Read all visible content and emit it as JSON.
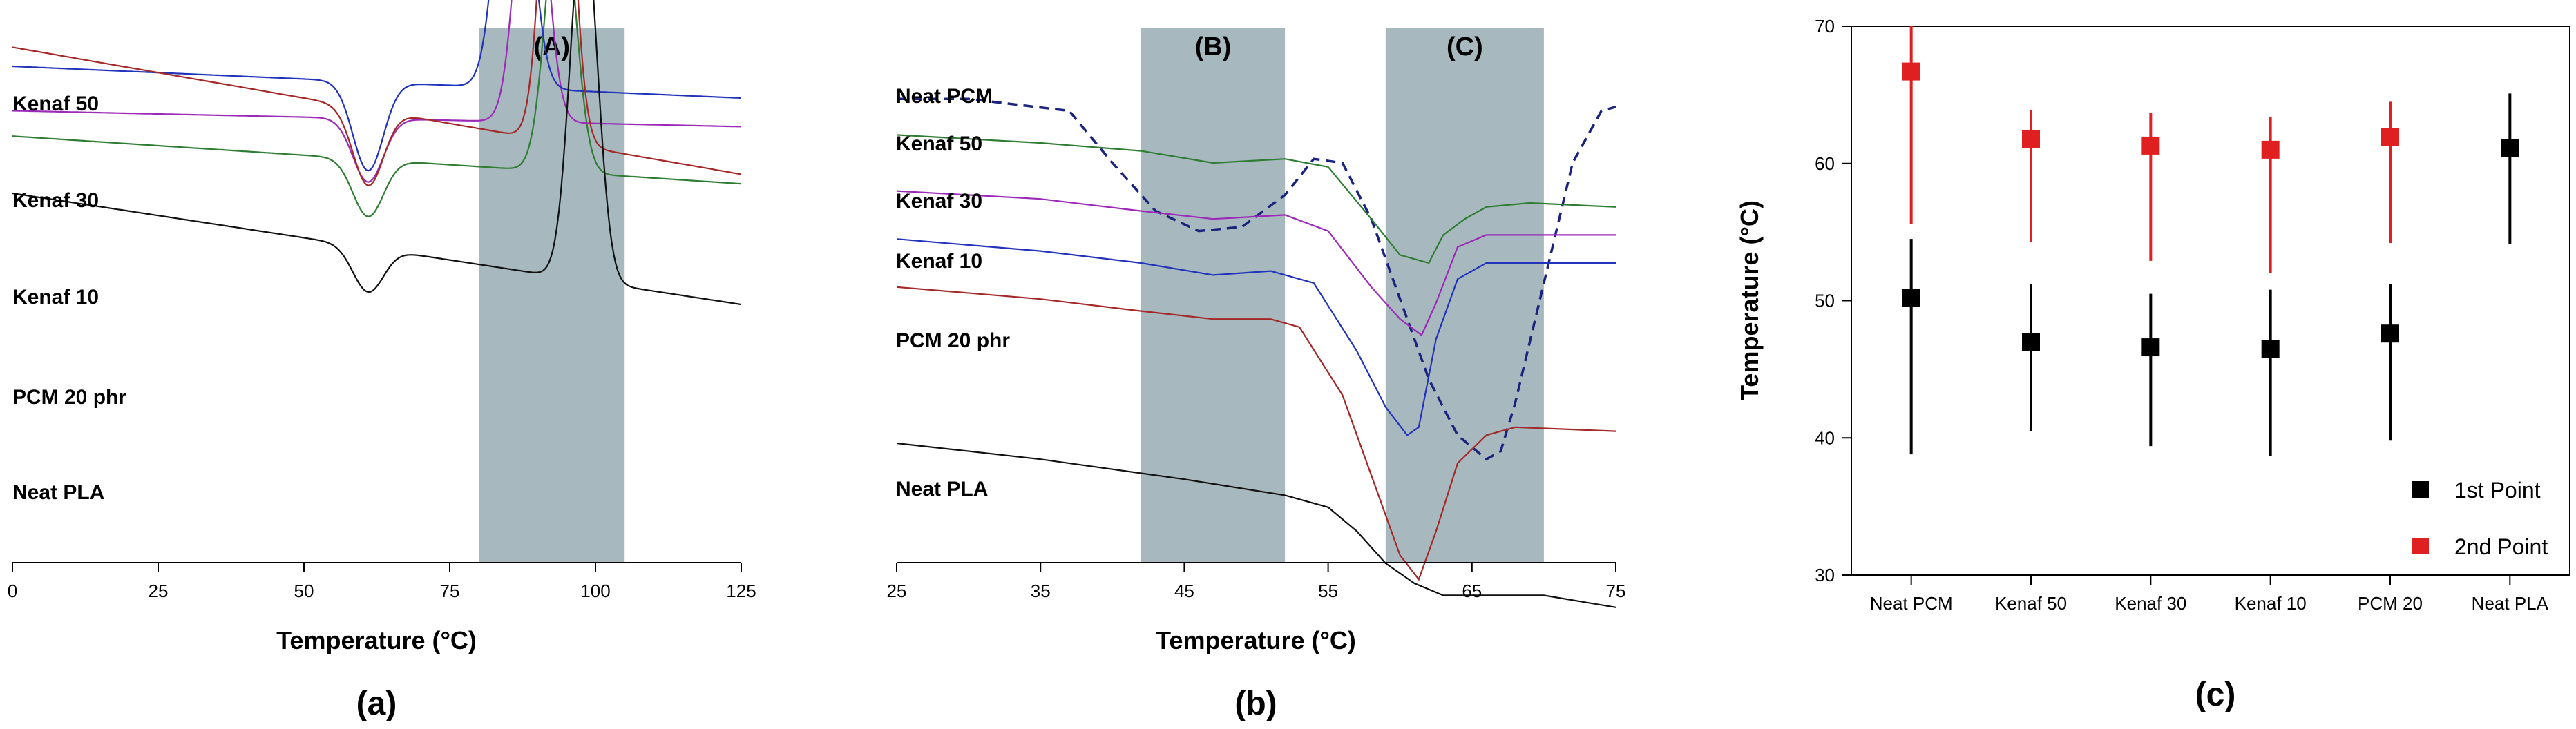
{
  "chart_data": [
    {
      "panel": "(a)",
      "type": "line",
      "xlabel": "Temperature (°C)",
      "ylabel": "",
      "xlim": [
        0,
        125
      ],
      "xticks": [
        0,
        25,
        50,
        75,
        100,
        125
      ],
      "regions": [
        {
          "label": "(A)",
          "x": [
            80,
            105
          ],
          "color": "#a7b8bf"
        }
      ],
      "series": [
        {
          "name": "Kenaf 50",
          "color": "#2e7d32",
          "baseline": 0.84,
          "slope": 0.0006,
          "features": [
            {
              "center": 61,
              "width": 2.6,
              "amp": -0.09
            },
            {
              "center": 94,
              "width": 2.4,
              "amp": 0.46
            }
          ]
        },
        {
          "name": "Kenaf 30",
          "color": "#9c2ab8",
          "baseline": 0.88,
          "slope": 0.0002,
          "features": [
            {
              "center": 61,
              "width": 2.6,
              "amp": -0.1
            },
            {
              "center": 89,
              "width": 2.4,
              "amp": 0.52
            }
          ]
        },
        {
          "name": "Kenaf 10",
          "color": "#2233bb",
          "baseline": 0.95,
          "slope": 0.0004,
          "features": [
            {
              "center": 61,
              "width": 2.6,
              "amp": -0.14
            },
            {
              "center": 86,
              "width": 2.6,
              "amp": 0.55
            }
          ]
        },
        {
          "name": "PCM 20 phr",
          "color": "#a52828",
          "baseline": 0.98,
          "slope": 0.0016,
          "features": [
            {
              "center": 61,
              "width": 2.6,
              "amp": -0.12
            },
            {
              "center": 93.5,
              "width": 2.3,
              "amp": 0.74
            }
          ]
        },
        {
          "name": "Neat PLA",
          "color": "#111111",
          "baseline": 0.75,
          "slope": 0.0014,
          "features": [
            {
              "center": 61,
              "width": 2.6,
              "amp": -0.07
            },
            {
              "center": 98,
              "width": 2.3,
              "amp": 0.58
            }
          ]
        }
      ]
    },
    {
      "panel": "(b)",
      "type": "line",
      "xlabel": "Temperature (°C)",
      "ylabel": "",
      "xlim": [
        25,
        75
      ],
      "xticks": [
        25,
        35,
        45,
        55,
        65,
        75
      ],
      "regions": [
        {
          "label": "(B)",
          "x": [
            42,
            52
          ],
          "color": "#a7b8bf"
        },
        {
          "label": "(C)",
          "x": [
            59,
            70
          ],
          "color": "#a7b8bf"
        }
      ],
      "series": [
        {
          "name": "Neat PCM",
          "color": "#1a237e",
          "dashed": true,
          "points": [
            [
              25,
              0.96
            ],
            [
              30,
              0.96
            ],
            [
              37,
              0.93
            ],
            [
              40,
              0.8
            ],
            [
              43,
              0.68
            ],
            [
              46,
              0.63
            ],
            [
              49,
              0.64
            ],
            [
              52,
              0.72
            ],
            [
              54,
              0.81
            ],
            [
              56,
              0.8
            ],
            [
              58,
              0.66
            ],
            [
              60,
              0.46
            ],
            [
              62,
              0.26
            ],
            [
              64,
              0.12
            ],
            [
              66,
              0.06
            ],
            [
              67,
              0.08
            ],
            [
              68,
              0.2
            ],
            [
              70,
              0.5
            ],
            [
              72,
              0.8
            ],
            [
              74,
              0.93
            ],
            [
              75,
              0.94
            ]
          ]
        },
        {
          "name": "Kenaf 50",
          "color": "#2e7d32",
          "points": [
            [
              25,
              0.87
            ],
            [
              35,
              0.85
            ],
            [
              42,
              0.83
            ],
            [
              47,
              0.8
            ],
            [
              52,
              0.81
            ],
            [
              55,
              0.79
            ],
            [
              58,
              0.66
            ],
            [
              60,
              0.57
            ],
            [
              62,
              0.55
            ],
            [
              63,
              0.62
            ],
            [
              64.5,
              0.66
            ],
            [
              66,
              0.69
            ],
            [
              69,
              0.7
            ],
            [
              75,
              0.69
            ]
          ]
        },
        {
          "name": "Kenaf 30",
          "color": "#9c2ab8",
          "points": [
            [
              25,
              0.73
            ],
            [
              35,
              0.71
            ],
            [
              42,
              0.68
            ],
            [
              47,
              0.66
            ],
            [
              52,
              0.67
            ],
            [
              55,
              0.63
            ],
            [
              58,
              0.49
            ],
            [
              60,
              0.41
            ],
            [
              61.5,
              0.37
            ],
            [
              62.5,
              0.45
            ],
            [
              64,
              0.59
            ],
            [
              66,
              0.62
            ],
            [
              75,
              0.62
            ]
          ]
        },
        {
          "name": "Kenaf 10",
          "color": "#2233bb",
          "points": [
            [
              25,
              0.61
            ],
            [
              35,
              0.58
            ],
            [
              42,
              0.55
            ],
            [
              47,
              0.52
            ],
            [
              51,
              0.53
            ],
            [
              54,
              0.5
            ],
            [
              57,
              0.33
            ],
            [
              59,
              0.19
            ],
            [
              60.5,
              0.12
            ],
            [
              61.3,
              0.14
            ],
            [
              62.5,
              0.36
            ],
            [
              64,
              0.51
            ],
            [
              66,
              0.55
            ],
            [
              75,
              0.55
            ]
          ]
        },
        {
          "name": "PCM 20 phr",
          "color": "#a52828",
          "points": [
            [
              25,
              0.49
            ],
            [
              35,
              0.46
            ],
            [
              42,
              0.43
            ],
            [
              47,
              0.41
            ],
            [
              51,
              0.41
            ],
            [
              53,
              0.39
            ],
            [
              56,
              0.22
            ],
            [
              58,
              0.02
            ],
            [
              60,
              -0.18
            ],
            [
              61.3,
              -0.24
            ],
            [
              62.5,
              -0.12
            ],
            [
              64,
              0.05
            ],
            [
              66,
              0.12
            ],
            [
              68,
              0.14
            ],
            [
              75,
              0.13
            ]
          ]
        },
        {
          "name": "Neat PLA",
          "color": "#111111",
          "points": [
            [
              25,
              0.1
            ],
            [
              35,
              0.06
            ],
            [
              45,
              0.01
            ],
            [
              52,
              -0.03
            ],
            [
              55,
              -0.06
            ],
            [
              57,
              -0.12
            ],
            [
              59,
              -0.2
            ],
            [
              61,
              -0.25
            ],
            [
              63,
              -0.28
            ],
            [
              66,
              -0.28
            ],
            [
              70,
              -0.28
            ],
            [
              75,
              -0.31
            ]
          ]
        }
      ]
    },
    {
      "panel": "(c)",
      "type": "scatter",
      "xlabel": "",
      "ylabel": "Temperature (°C)",
      "ylim": [
        30,
        70
      ],
      "yticks": [
        30,
        40,
        50,
        60,
        70
      ],
      "categories": [
        "Neat PCM",
        "Kenaf 50",
        "Kenaf 30",
        "Kenaf 10",
        "PCM 20",
        "Neat PLA"
      ],
      "legend_position": "bottom-right",
      "series": [
        {
          "name": "1st Point",
          "color": "#000000",
          "values": [
            50.2,
            47.0,
            46.6,
            46.5,
            47.6,
            61.1
          ],
          "lower": [
            38.8,
            40.5,
            39.4,
            38.7,
            39.8,
            54.1
          ],
          "upper": [
            54.5,
            51.2,
            50.5,
            50.8,
            51.2,
            65.1
          ]
        },
        {
          "name": "2nd Point",
          "color": "#e02020",
          "values": [
            66.7,
            61.8,
            61.3,
            61.0,
            61.9,
            null
          ],
          "lower": [
            55.6,
            54.3,
            52.9,
            52.0,
            54.2,
            null
          ],
          "upper": [
            70.0,
            63.9,
            63.7,
            63.4,
            64.5,
            null
          ]
        }
      ]
    }
  ]
}
